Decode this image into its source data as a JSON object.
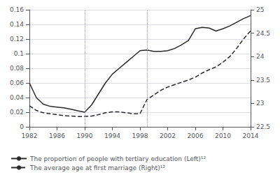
{
  "chart_data": {
    "type": "line",
    "x": [
      1982,
      1983,
      1984,
      1985,
      1986,
      1987,
      1988,
      1989,
      1990,
      1991,
      1992,
      1993,
      1994,
      1995,
      1996,
      1997,
      1998,
      1999,
      2000,
      2001,
      2002,
      2003,
      2004,
      2005,
      2006,
      2007,
      2008,
      2009,
      2010,
      2011,
      2012,
      2013,
      2014
    ],
    "series": [
      {
        "name": "The proportion of people with tertiary education (Left)¹²",
        "color": "#2a2a2a",
        "line_style": "solid",
        "values": [
          0.06,
          0.04,
          0.031,
          0.028,
          0.027,
          0.026,
          0.024,
          0.022,
          0.02,
          0.03,
          0.045,
          0.06,
          0.072,
          0.08,
          0.088,
          0.096,
          0.104,
          0.105,
          0.103,
          0.103,
          0.104,
          0.107,
          0.112,
          0.118,
          0.134,
          0.136,
          0.135,
          0.131,
          0.134,
          0.138,
          0.143,
          0.148,
          0.152
        ]
      },
      {
        "name": "The average age at first marriage (Right)¹²",
        "color": "#2a2a2a",
        "line_style": "dashed",
        "axis": "y2",
        "values": [
          22.95,
          22.85,
          22.8,
          22.78,
          22.76,
          22.74,
          22.73,
          22.72,
          22.72,
          22.73,
          22.76,
          22.8,
          22.82,
          22.82,
          22.8,
          22.78,
          22.78,
          23.08,
          23.18,
          23.28,
          23.35,
          23.4,
          23.45,
          23.5,
          23.56,
          23.65,
          23.72,
          23.78,
          23.88,
          24.0,
          24.18,
          24.38,
          24.55
        ]
      }
    ],
    "xlim": [
      1982,
      2014
    ],
    "xticks": [
      1982,
      1986,
      1990,
      1994,
      1998,
      2002,
      2006,
      2010,
      2014
    ],
    "ylim": [
      0,
      0.16
    ],
    "yticks": [
      0,
      0.02,
      0.04,
      0.06,
      0.08,
      0.1,
      0.12,
      0.14,
      0.16
    ],
    "y2lim": [
      22.5,
      25
    ],
    "y2ticks": [
      22.5,
      23,
      23.5,
      24,
      24.5,
      25
    ],
    "vlines": {
      "x": [
        1990,
        1999
      ],
      "color": "#aaaaaa",
      "line_style": "dotted"
    },
    "grid": true,
    "legend": "lower left"
  }
}
